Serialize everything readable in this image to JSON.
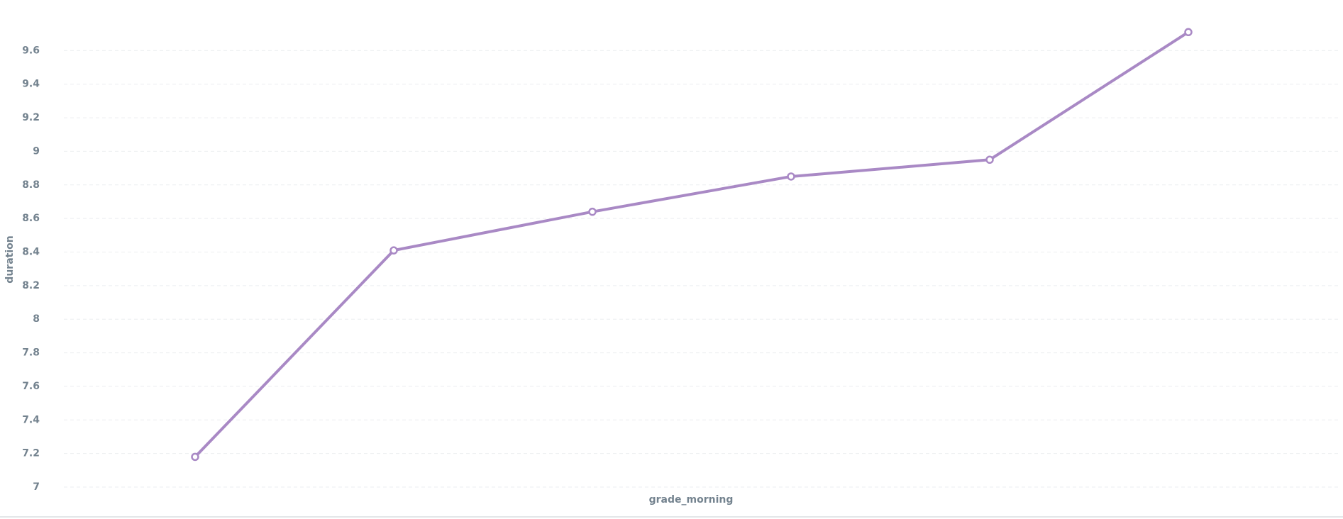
{
  "chart_data": {
    "type": "line",
    "x_label": "grade_morning",
    "y_label": "duration",
    "categories": [
      null,
      null,
      null,
      null,
      null,
      null
    ],
    "values": [
      7.18,
      8.41,
      8.64,
      8.85,
      8.95,
      9.71
    ],
    "color": "#a989c5",
    "ylim": [
      7,
      9.8
    ],
    "yticks": [
      7,
      7.2,
      7.4,
      7.6,
      7.8,
      8,
      8.2,
      8.4,
      8.6,
      8.8,
      9,
      9.2,
      9.4,
      9.6
    ],
    "grid": true
  }
}
